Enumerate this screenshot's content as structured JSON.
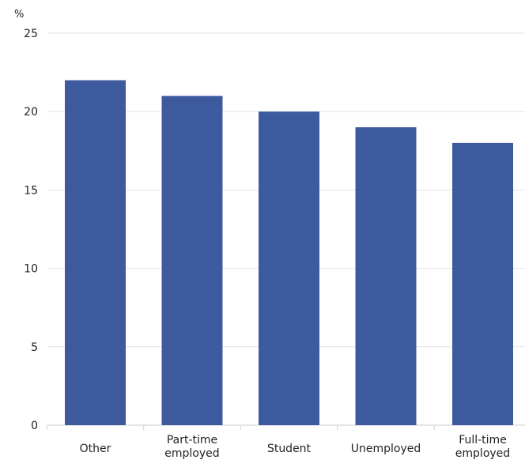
{
  "chart_data": {
    "type": "bar",
    "title": "",
    "xlabel": "",
    "ylabel": "%",
    "categories": [
      "Other",
      "Part-time employed",
      "Student",
      "Unemployed",
      "Full-time employed"
    ],
    "category_lines": [
      [
        "Other"
      ],
      [
        "Part-time",
        "employed"
      ],
      [
        "Student"
      ],
      [
        "Unemployed"
      ],
      [
        "Full-time",
        "employed"
      ]
    ],
    "values": [
      22,
      21,
      20,
      19,
      18
    ],
    "ylim": [
      0,
      25
    ],
    "yticks": [
      "0",
      "5",
      "10",
      "15",
      "20",
      "25"
    ],
    "grid": true,
    "legend": "none",
    "colors": {
      "bar": "#3d5a9e",
      "grid": "#e3e3e3",
      "axis": "#cfcfcf",
      "text": "#222222"
    }
  }
}
